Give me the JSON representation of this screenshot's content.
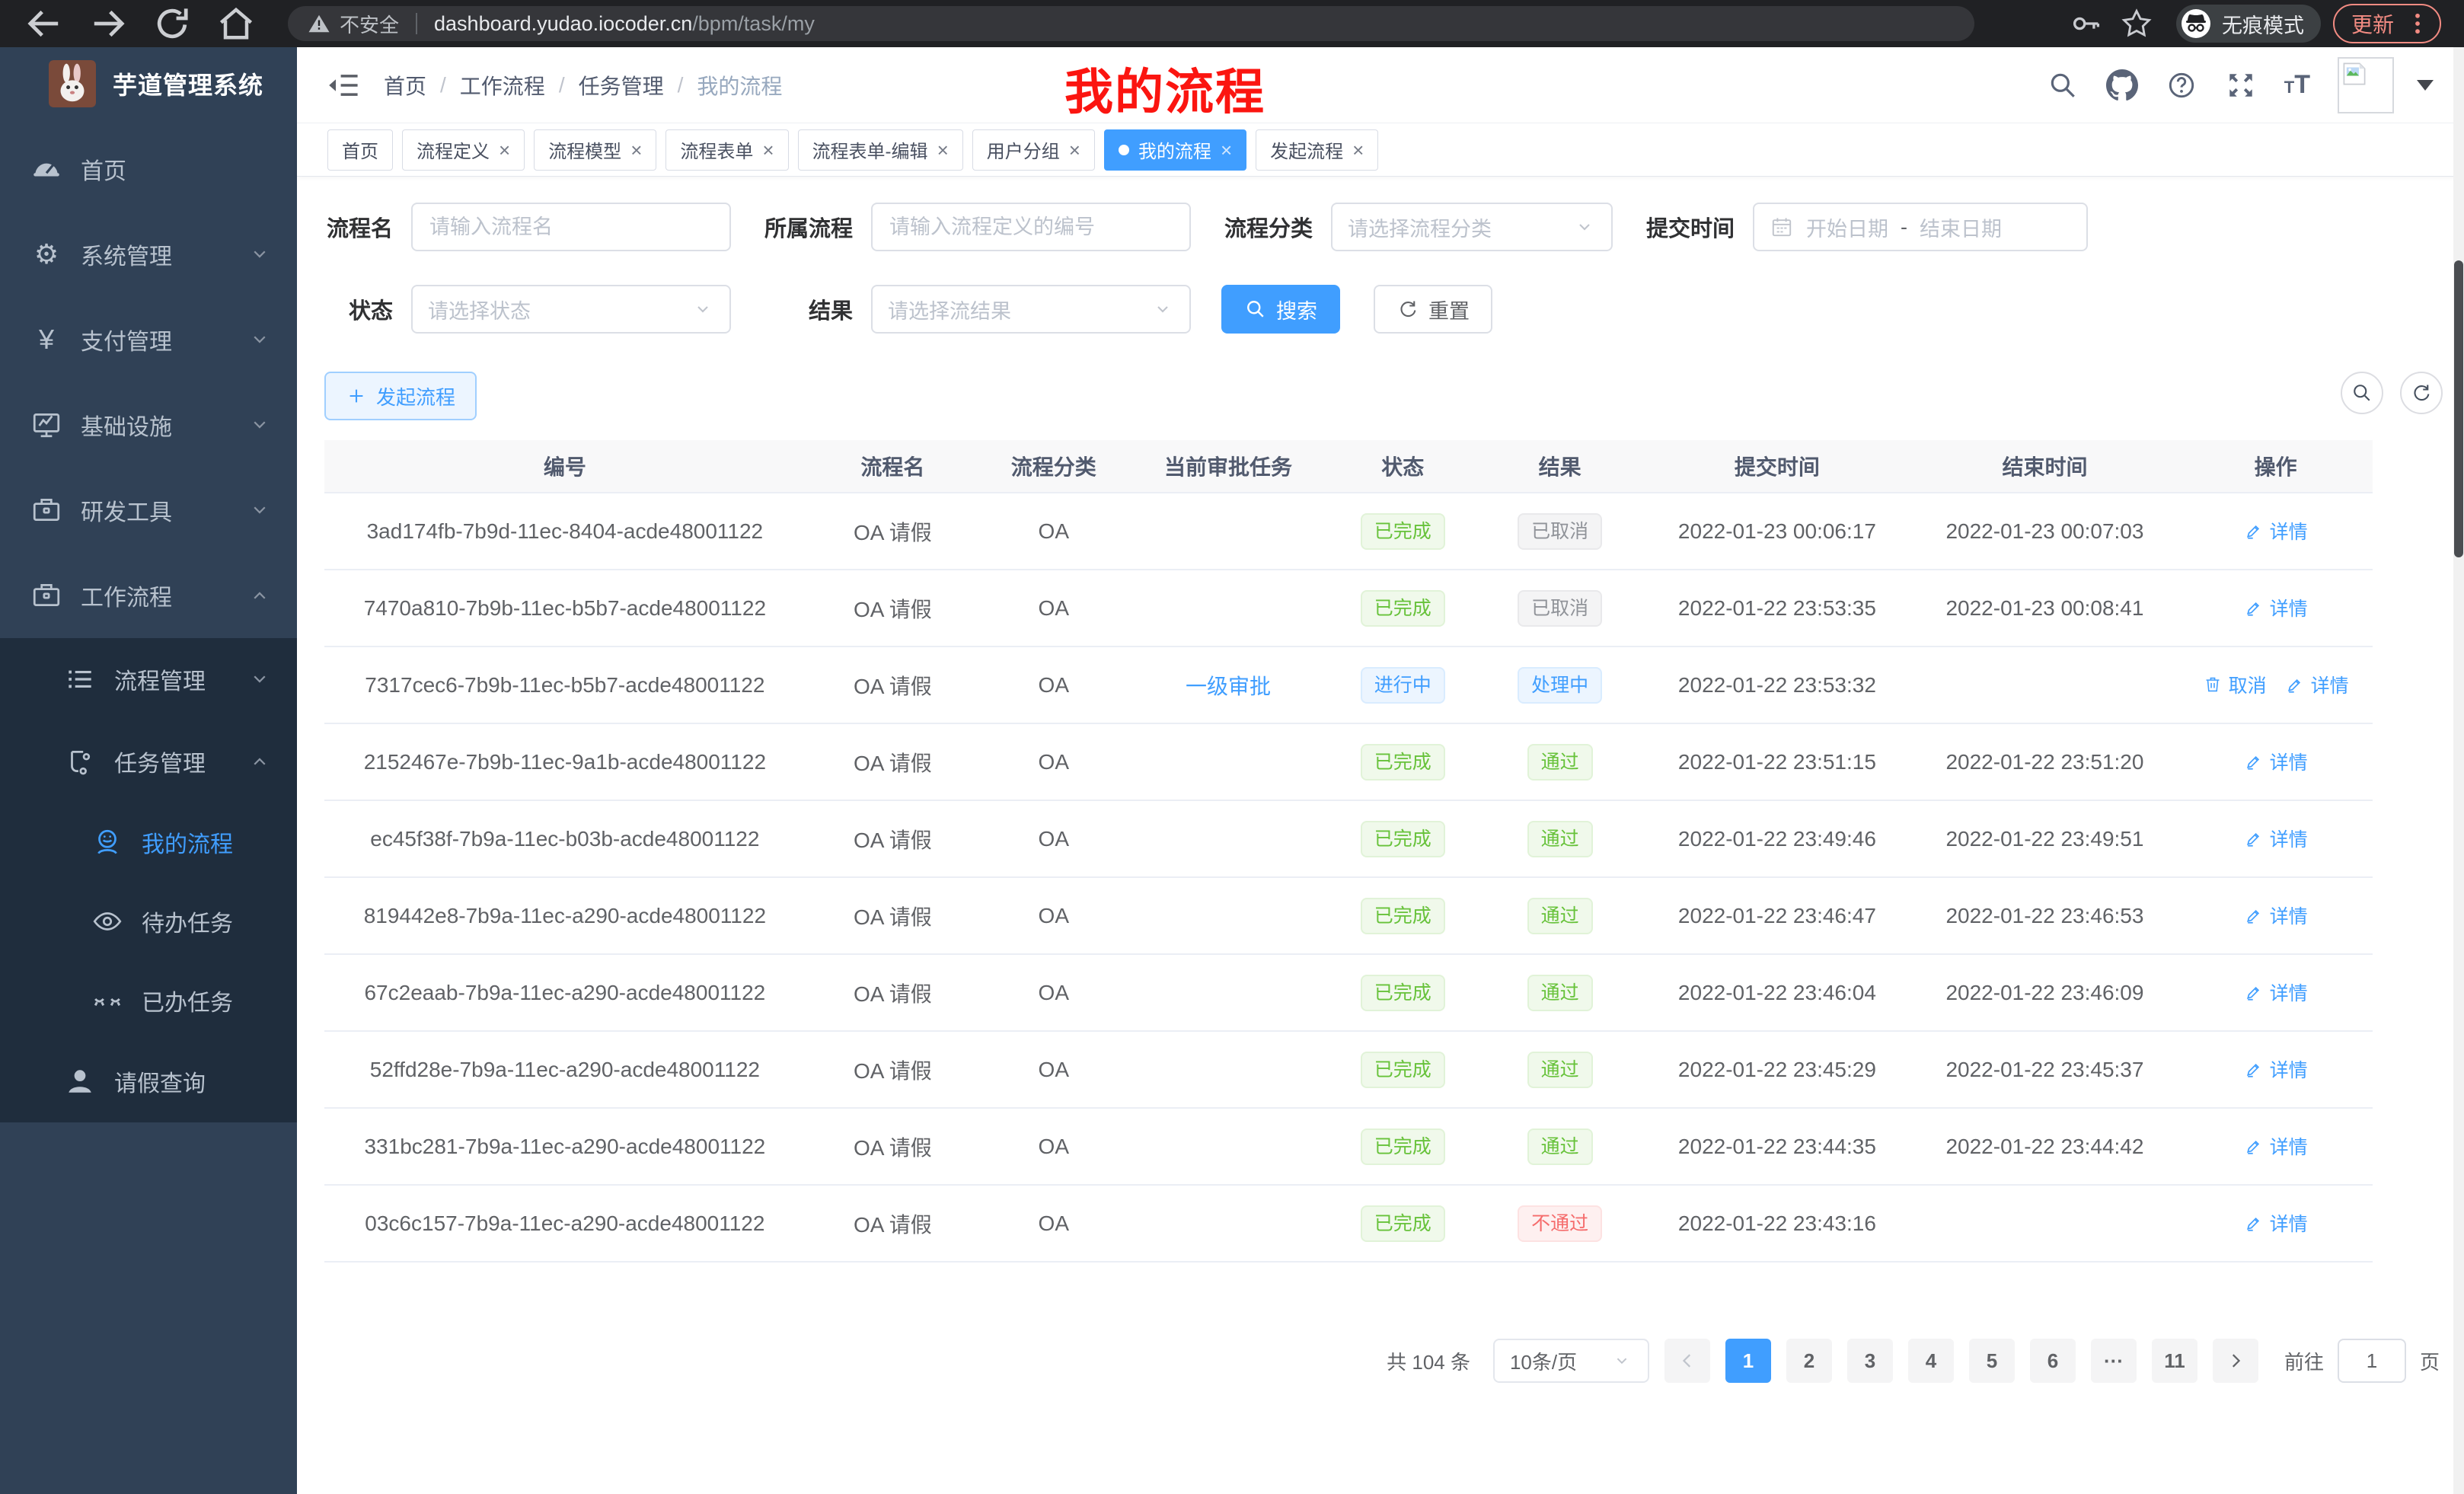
{
  "browser": {
    "security_label": "不安全",
    "url_domain": "dashboard.yudao.iocoder.cn",
    "url_path": "/bpm/task/my",
    "incognito_label": "无痕模式",
    "update_label": "更新"
  },
  "sidebar": {
    "app_title": "芋道管理系统",
    "menu": [
      {
        "key": "home",
        "label": "首页",
        "icon": "gauge",
        "level": 1,
        "sub": false
      },
      {
        "key": "system-mgmt",
        "label": "系统管理",
        "icon": "gear",
        "level": 1,
        "chevron": "down",
        "sub": false
      },
      {
        "key": "pay-mgmt",
        "label": "支付管理",
        "icon": "yen",
        "level": 1,
        "chevron": "down",
        "sub": false
      },
      {
        "key": "infrastructure",
        "label": "基础设施",
        "icon": "monitor",
        "level": 1,
        "chevron": "down",
        "sub": false
      },
      {
        "key": "dev-tools",
        "label": "研发工具",
        "icon": "briefcase",
        "level": 1,
        "chevron": "down",
        "sub": false
      },
      {
        "key": "workflow",
        "label": "工作流程",
        "icon": "briefcase",
        "level": 1,
        "chevron": "up",
        "sub": false
      },
      {
        "key": "process-mgmt",
        "label": "流程管理",
        "icon": "list",
        "level": 2,
        "chevron": "down",
        "sub": true
      },
      {
        "key": "task-mgmt",
        "label": "任务管理",
        "icon": "flow",
        "level": 2,
        "chevron": "up",
        "sub": true
      },
      {
        "key": "my-process",
        "label": "我的流程",
        "icon": "face",
        "level": 3,
        "sub": true,
        "active": true
      },
      {
        "key": "todo-task",
        "label": "待办任务",
        "icon": "eye",
        "level": 3,
        "sub": true
      },
      {
        "key": "done-task",
        "label": "已办任务",
        "icon": "eye-closed",
        "level": 3,
        "sub": true
      },
      {
        "key": "leave-query",
        "label": "请假查询",
        "icon": "person",
        "level": 2,
        "sub": true
      }
    ]
  },
  "header": {
    "breadcrumb": [
      "首页",
      "工作流程",
      "任务管理",
      "我的流程"
    ],
    "annotation": "我的流程"
  },
  "tabs": [
    {
      "label": "首页",
      "closable": false,
      "active": false
    },
    {
      "label": "流程定义",
      "closable": true,
      "active": false
    },
    {
      "label": "流程模型",
      "closable": true,
      "active": false
    },
    {
      "label": "流程表单",
      "closable": true,
      "active": false
    },
    {
      "label": "流程表单-编辑",
      "closable": true,
      "active": false
    },
    {
      "label": "用户分组",
      "closable": true,
      "active": false
    },
    {
      "label": "我的流程",
      "closable": true,
      "active": true
    },
    {
      "label": "发起流程",
      "closable": true,
      "active": false
    }
  ],
  "filters": {
    "name_label": "流程名",
    "name_placeholder": "请输入流程名",
    "def_label": "所属流程",
    "def_placeholder": "请输入流程定义的编号",
    "category_label": "流程分类",
    "category_placeholder": "请选择流程分类",
    "time_label": "提交时间",
    "date_start": "开始日期",
    "date_sep": "-",
    "date_end": "结束日期",
    "status_label": "状态",
    "status_placeholder": "请选择状态",
    "result_label": "结果",
    "result_placeholder": "请选择流结果",
    "search_label": "搜索",
    "reset_label": "重置"
  },
  "toolbar": {
    "create_label": "发起流程"
  },
  "table": {
    "columns": [
      "编号",
      "流程名",
      "流程分类",
      "当前审批任务",
      "状态",
      "结果",
      "提交时间",
      "结束时间",
      "操作"
    ],
    "rows": [
      {
        "id": "3ad174fb-7b9d-11ec-8404-acde48001122",
        "name": "OA 请假",
        "category": "OA",
        "task": "",
        "status": "已完成",
        "status_type": "success",
        "result": "已取消",
        "result_type": "info",
        "submit": "2022-01-23 00:06:17",
        "end": "2022-01-23 00:07:03",
        "actions": [
          "详情"
        ]
      },
      {
        "id": "7470a810-7b9b-11ec-b5b7-acde48001122",
        "name": "OA 请假",
        "category": "OA",
        "task": "",
        "status": "已完成",
        "status_type": "success",
        "result": "已取消",
        "result_type": "info",
        "submit": "2022-01-22 23:53:35",
        "end": "2022-01-23 00:08:41",
        "actions": [
          "详情"
        ]
      },
      {
        "id": "7317cec6-7b9b-11ec-b5b7-acde48001122",
        "name": "OA 请假",
        "category": "OA",
        "task": "一级审批",
        "status": "进行中",
        "status_type": "primary",
        "result": "处理中",
        "result_type": "primary",
        "submit": "2022-01-22 23:53:32",
        "end": "",
        "actions": [
          "取消",
          "详情"
        ]
      },
      {
        "id": "2152467e-7b9b-11ec-9a1b-acde48001122",
        "name": "OA 请假",
        "category": "OA",
        "task": "",
        "status": "已完成",
        "status_type": "success",
        "result": "通过",
        "result_type": "success",
        "submit": "2022-01-22 23:51:15",
        "end": "2022-01-22 23:51:20",
        "actions": [
          "详情"
        ]
      },
      {
        "id": "ec45f38f-7b9a-11ec-b03b-acde48001122",
        "name": "OA 请假",
        "category": "OA",
        "task": "",
        "status": "已完成",
        "status_type": "success",
        "result": "通过",
        "result_type": "success",
        "submit": "2022-01-22 23:49:46",
        "end": "2022-01-22 23:49:51",
        "actions": [
          "详情"
        ]
      },
      {
        "id": "819442e8-7b9a-11ec-a290-acde48001122",
        "name": "OA 请假",
        "category": "OA",
        "task": "",
        "status": "已完成",
        "status_type": "success",
        "result": "通过",
        "result_type": "success",
        "submit": "2022-01-22 23:46:47",
        "end": "2022-01-22 23:46:53",
        "actions": [
          "详情"
        ]
      },
      {
        "id": "67c2eaab-7b9a-11ec-a290-acde48001122",
        "name": "OA 请假",
        "category": "OA",
        "task": "",
        "status": "已完成",
        "status_type": "success",
        "result": "通过",
        "result_type": "success",
        "submit": "2022-01-22 23:46:04",
        "end": "2022-01-22 23:46:09",
        "actions": [
          "详情"
        ]
      },
      {
        "id": "52ffd28e-7b9a-11ec-a290-acde48001122",
        "name": "OA 请假",
        "category": "OA",
        "task": "",
        "status": "已完成",
        "status_type": "success",
        "result": "通过",
        "result_type": "success",
        "submit": "2022-01-22 23:45:29",
        "end": "2022-01-22 23:45:37",
        "actions": [
          "详情"
        ]
      },
      {
        "id": "331bc281-7b9a-11ec-a290-acde48001122",
        "name": "OA 请假",
        "category": "OA",
        "task": "",
        "status": "已完成",
        "status_type": "success",
        "result": "通过",
        "result_type": "success",
        "submit": "2022-01-22 23:44:35",
        "end": "2022-01-22 23:44:42",
        "actions": [
          "详情"
        ]
      },
      {
        "id": "03c6c157-7b9a-11ec-a290-acde48001122",
        "name": "OA 请假",
        "category": "OA",
        "task": "",
        "status": "已完成",
        "status_type": "success",
        "result": "不通过",
        "result_type": "danger",
        "submit": "2022-01-22 23:43:16",
        "end": "",
        "actions": [
          "详情"
        ]
      }
    ],
    "action_labels": {
      "detail": "详情",
      "cancel": "取消"
    }
  },
  "pagination": {
    "total_text": "共 104 条",
    "page_size": "10条/页",
    "pages": [
      "1",
      "2",
      "3",
      "4",
      "5",
      "6",
      "···",
      "11"
    ],
    "active_page": "1",
    "goto_label": "前往",
    "goto_value": "1",
    "goto_suffix": "页"
  },
  "colors": {
    "accent": "#409eff",
    "sidebar_bg": "#304156",
    "submenu_bg": "#1f2d3d",
    "success": "#67c23a",
    "danger": "#f56c6c",
    "info": "#909399",
    "annotation_red": "#fb1510"
  }
}
